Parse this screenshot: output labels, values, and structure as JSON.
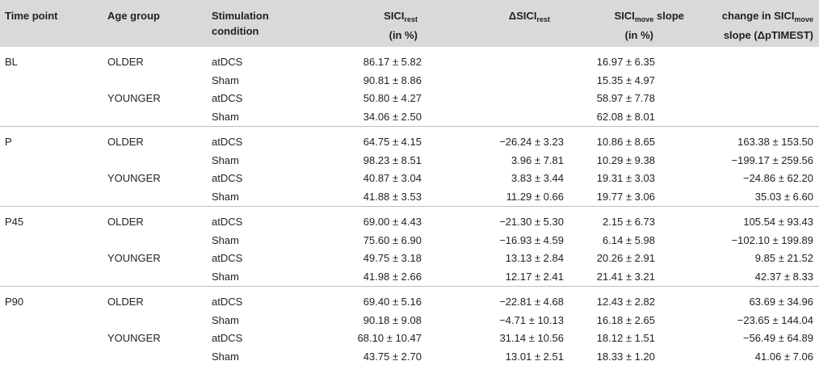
{
  "headers": {
    "time_point": "Time point",
    "age_group": "Age group",
    "stim_line1": "Stimulation",
    "stim_line2": "condition",
    "sicirest_main": "SICI",
    "sicirest_sub": "rest",
    "sicirest_unit": "(in %)",
    "dsicirest_main": "ΔSICI",
    "dsicirest_sub": "rest",
    "sicimove_main": "SICI",
    "sicimove_sub": "move",
    "sicimove_rest": " slope",
    "sicimove_unit": "(in %)",
    "change_line1_pre": "change in SICI",
    "change_line1_sub": "move",
    "change_line2": "slope (ΔpTIMEST)"
  },
  "groups": [
    {
      "time_point": "BL",
      "rows": [
        {
          "age": "OLDER",
          "stim": "atDCS",
          "sici_rest": "86.17 ± 5.82",
          "d_sici_rest": "",
          "sici_move": "16.97 ± 6.35",
          "change": ""
        },
        {
          "age": "",
          "stim": "Sham",
          "sici_rest": "90.81 ± 8.86",
          "d_sici_rest": "",
          "sici_move": "15.35 ± 4.97",
          "change": ""
        },
        {
          "age": "YOUNGER",
          "stim": "atDCS",
          "sici_rest": "50.80 ± 4.27",
          "d_sici_rest": "",
          "sici_move": "58.97 ± 7.78",
          "change": ""
        },
        {
          "age": "",
          "stim": "Sham",
          "sici_rest": "34.06 ± 2.50",
          "d_sici_rest": "",
          "sici_move": "62.08 ± 8.01",
          "change": ""
        }
      ]
    },
    {
      "time_point": "P",
      "rows": [
        {
          "age": "OLDER",
          "stim": "atDCS",
          "sici_rest": "64.75 ± 4.15",
          "d_sici_rest": "−26.24 ± 3.23",
          "sici_move": "10.86 ± 8.65",
          "change": "163.38 ± 153.50"
        },
        {
          "age": "",
          "stim": "Sham",
          "sici_rest": "98.23 ± 8.51",
          "d_sici_rest": "3.96 ± 7.81",
          "sici_move": "10.29 ± 9.38",
          "change": "−199.17 ± 259.56"
        },
        {
          "age": "YOUNGER",
          "stim": "atDCS",
          "sici_rest": "40.87 ± 3.04",
          "d_sici_rest": "3.83 ± 3.44",
          "sici_move": "19.31 ± 3.03",
          "change": "−24.86 ± 62.20"
        },
        {
          "age": "",
          "stim": "Sham",
          "sici_rest": "41.88 ± 3.53",
          "d_sici_rest": "11.29 ± 0.66",
          "sici_move": "19.77 ± 3.06",
          "change": "35.03 ± 6.60"
        }
      ]
    },
    {
      "time_point": "P45",
      "rows": [
        {
          "age": "OLDER",
          "stim": "atDCS",
          "sici_rest": "69.00 ± 4.43",
          "d_sici_rest": "−21.30 ± 5.30",
          "sici_move": "2.15 ± 6.73",
          "change": "105.54 ± 93.43"
        },
        {
          "age": "",
          "stim": "Sham",
          "sici_rest": "75.60 ± 6.90",
          "d_sici_rest": "−16.93 ± 4.59",
          "sici_move": "6.14 ± 5.98",
          "change": "−102.10 ± 199.89"
        },
        {
          "age": "YOUNGER",
          "stim": "atDCS",
          "sici_rest": "49.75 ± 3.18",
          "d_sici_rest": "13.13 ± 2.84",
          "sici_move": "20.26 ± 2.91",
          "change": "9.85 ± 21.52"
        },
        {
          "age": "",
          "stim": "Sham",
          "sici_rest": "41.98 ± 2.66",
          "d_sici_rest": "12.17 ± 2.41",
          "sici_move": "21.41 ± 3.21",
          "change": "42.37 ± 8.33"
        }
      ]
    },
    {
      "time_point": "P90",
      "rows": [
        {
          "age": "OLDER",
          "stim": "atDCS",
          "sici_rest": "69.40 ± 5.16",
          "d_sici_rest": "−22.81 ± 4.68",
          "sici_move": "12.43 ± 2.82",
          "change": "63.69 ± 34.96"
        },
        {
          "age": "",
          "stim": "Sham",
          "sici_rest": "90.18 ± 9.08",
          "d_sici_rest": "−4.71 ± 10.13",
          "sici_move": "16.18 ± 2.65",
          "change": "−23.65 ± 144.04"
        },
        {
          "age": "YOUNGER",
          "stim": "atDCS",
          "sici_rest": "68.10 ± 10.47",
          "d_sici_rest": "31.14 ± 10.56",
          "sici_move": "18.12 ± 1.51",
          "change": "−56.49 ± 64.89"
        },
        {
          "age": "",
          "stim": "Sham",
          "sici_rest": "43.75 ± 2.70",
          "d_sici_rest": "13.01 ± 2.51",
          "sici_move": "18.33 ± 1.20",
          "change": "41.06 ± 7.06"
        }
      ]
    }
  ]
}
